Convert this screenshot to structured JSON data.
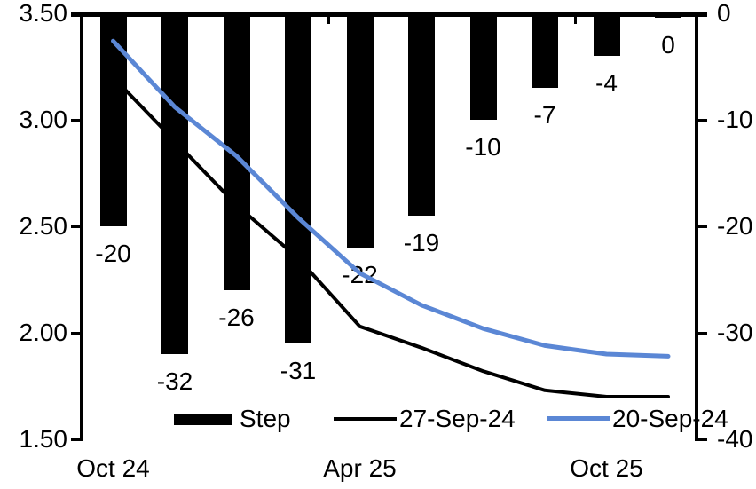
{
  "chart_data": {
    "type": "bar",
    "subtype": "combo-bar-line",
    "title": "",
    "categories": [
      "Oct 24",
      "",
      "",
      "",
      "Apr 25",
      "",
      "",
      "",
      "Oct 25",
      ""
    ],
    "bar_series": {
      "name": "Step",
      "axis": "right",
      "color": "#000000",
      "values": [
        -20,
        -32,
        -26,
        -31,
        -22,
        -19,
        -10,
        -7,
        -4,
        0
      ],
      "data_labels": [
        "-20",
        "-32",
        "-26",
        "-31",
        "-22",
        "-19",
        "-10",
        "-7",
        "-4",
        "0"
      ]
    },
    "line_series": [
      {
        "name": "27-Sep-24",
        "axis": "left",
        "color": "#000000",
        "values": [
          3.2,
          2.9,
          2.6,
          2.35,
          2.03,
          1.93,
          1.82,
          1.73,
          1.7,
          1.7
        ]
      },
      {
        "name": "20-Sep-24",
        "axis": "left",
        "color": "#5b87d5",
        "values": [
          3.37,
          3.06,
          2.83,
          2.54,
          2.28,
          2.13,
          2.02,
          1.94,
          1.9,
          1.89
        ]
      }
    ],
    "left_axis": {
      "min": 1.5,
      "max": 3.5,
      "tick_labels": [
        "3.50",
        "3.00",
        "2.50",
        "2.00",
        "1.50"
      ]
    },
    "right_axis": {
      "min": -40,
      "max": 0,
      "tick_labels": [
        "0",
        "-10",
        "-20",
        "-30",
        "-40"
      ]
    },
    "x_axis": {
      "labels": [
        {
          "text": "Oct 24",
          "category_index": 0
        },
        {
          "text": "Apr 25",
          "category_index": 4
        },
        {
          "text": "Oct 25",
          "category_index": 8
        }
      ]
    },
    "legend": [
      {
        "label": "Step",
        "type": "bar",
        "color": "#000000"
      },
      {
        "label": "27-Sep-24",
        "type": "line",
        "color": "#000000"
      },
      {
        "label": "20-Sep-24",
        "type": "line",
        "color": "#5b87d5"
      }
    ],
    "grid": "off",
    "legend_position": "inside-bottom"
  }
}
